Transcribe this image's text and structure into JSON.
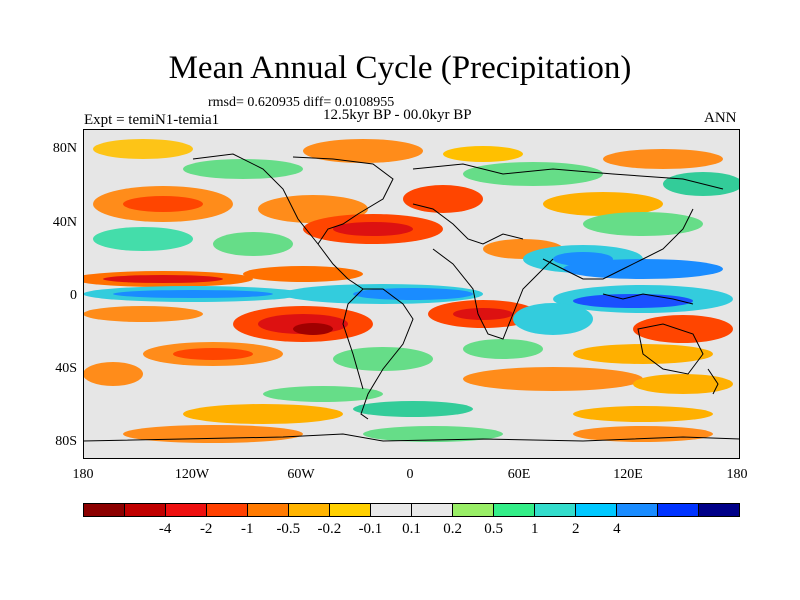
{
  "title": "Mean Annual Cycle (Precipitation)",
  "stats_line": "rmsd= 0.620935  diff= 0.0108955",
  "experiment_label": "Expt = temiN1-temia1",
  "period_label": "12.5kyr BP - 00.0kyr BP",
  "season_label": "ANN",
  "map": {
    "lat_labels": [
      "80N",
      "40N",
      "0",
      "40S",
      "80S"
    ],
    "lon_labels": [
      "180",
      "120W",
      "60W",
      "0",
      "60E",
      "120E",
      "180"
    ]
  },
  "colorbar": {
    "colors": [
      "#8b0000",
      "#c00000",
      "#ee1010",
      "#ff4000",
      "#ff7a00",
      "#ffb400",
      "#ffd000",
      "#e8e8e8",
      "#e8e8e8",
      "#99ee66",
      "#33ee88",
      "#33ddcc",
      "#00c8ff",
      "#1a8cff",
      "#0033ff",
      "#000088"
    ],
    "labels": [
      "-4",
      "-2",
      "-1",
      "-0.5",
      "-0.2",
      "-0.1",
      "0.1",
      "0.2",
      "0.5",
      "1",
      "2",
      "4"
    ],
    "boundary_positions": [
      2,
      3,
      4,
      5,
      6,
      7,
      8,
      9,
      10,
      11,
      12,
      13
    ]
  }
}
